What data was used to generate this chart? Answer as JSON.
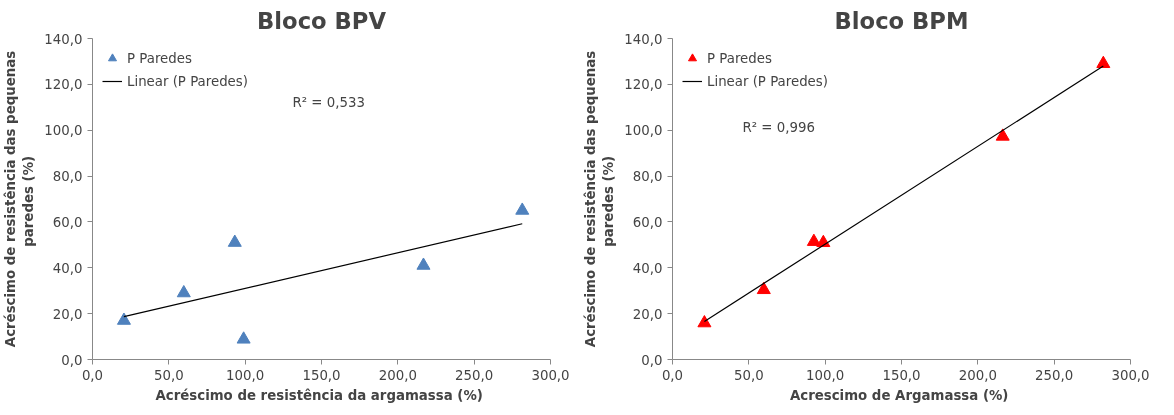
{
  "chart_data": [
    {
      "type": "scatter",
      "title": "Bloco BPV",
      "xlabel": "Acréscimo de resistência da argamassa  (%)",
      "ylabel": "Acréscimo de resistência das pequenas\nparedes  (%)",
      "x": [
        20.6,
        59.8,
        93.2,
        99.0,
        216.8,
        281.5
      ],
      "series": [
        {
          "name": "P Paredes",
          "color": "#4f81bd",
          "values": [
            17,
            29,
            51,
            8.8,
            41,
            65
          ],
          "marker": "triangle"
        },
        {
          "name": "Linear (P Paredes)",
          "type": "line",
          "color": "#000000",
          "x": [
            20.6,
            281.5
          ],
          "values": [
            18.7,
            59.2
          ]
        }
      ],
      "annotations": [
        "R² = 0,533"
      ],
      "xlim": [
        0,
        300
      ],
      "ylim": [
        0,
        140
      ],
      "xticks": [
        {
          "value": 0,
          "label": "0,0"
        },
        {
          "value": 50,
          "label": "50,0"
        },
        {
          "value": 100,
          "label": "100,0"
        },
        {
          "value": 150,
          "label": "150,0"
        },
        {
          "value": 200,
          "label": "200,0"
        },
        {
          "value": 250,
          "label": "250,0"
        },
        {
          "value": 300,
          "label": "300,0"
        }
      ],
      "yticks": [
        {
          "value": 0,
          "label": "0,0"
        },
        {
          "value": 20,
          "label": "20,0"
        },
        {
          "value": 40,
          "label": "40,0"
        },
        {
          "value": 60,
          "label": "60,0"
        },
        {
          "value": 80,
          "label": "80,0"
        },
        {
          "value": 100,
          "label": "100,0"
        },
        {
          "value": 120,
          "label": "120,0"
        },
        {
          "value": 140,
          "label": "140,0"
        }
      ],
      "grid": false,
      "legend": "top left"
    },
    {
      "type": "scatter",
      "title": "Bloco BPM",
      "xlabel": "Acrescimo de Argamassa  (%)",
      "ylabel": "Acréscimo de resistência das pequenas\nparedes  (%)",
      "x": [
        20.9,
        59.8,
        92.6,
        98.8,
        216.3,
        282.2
      ],
      "series": [
        {
          "name": "P Paredes",
          "color": "#ff0000",
          "values": [
            15.9,
            30.4,
            51.4,
            50.9,
            97.3,
            129
          ],
          "marker": "triangle"
        },
        {
          "name": "Linear (P Paredes)",
          "type": "line",
          "color": "#000000",
          "x": [
            20.9,
            282.2
          ],
          "values": [
            16.6,
            128
          ]
        }
      ],
      "annotations": [
        "R² = 0,996"
      ],
      "xlim": [
        0,
        300
      ],
      "ylim": [
        0,
        140
      ],
      "xticks": [
        {
          "value": 0,
          "label": "0,0"
        },
        {
          "value": 50,
          "label": "50,0"
        },
        {
          "value": 100,
          "label": "100,0"
        },
        {
          "value": 150,
          "label": "150,0"
        },
        {
          "value": 200,
          "label": "200,0"
        },
        {
          "value": 250,
          "label": "250,0"
        },
        {
          "value": 300,
          "label": "300,0"
        }
      ],
      "yticks": [
        {
          "value": 0,
          "label": "0,0"
        },
        {
          "value": 20,
          "label": "20,0"
        },
        {
          "value": 40,
          "label": "40,0"
        },
        {
          "value": 60,
          "label": "60,0"
        },
        {
          "value": 80,
          "label": "80,0"
        },
        {
          "value": 100,
          "label": "100,0"
        },
        {
          "value": 120,
          "label": "120,0"
        },
        {
          "value": 140,
          "label": "140,0"
        }
      ],
      "grid": false,
      "legend": "top left"
    }
  ]
}
